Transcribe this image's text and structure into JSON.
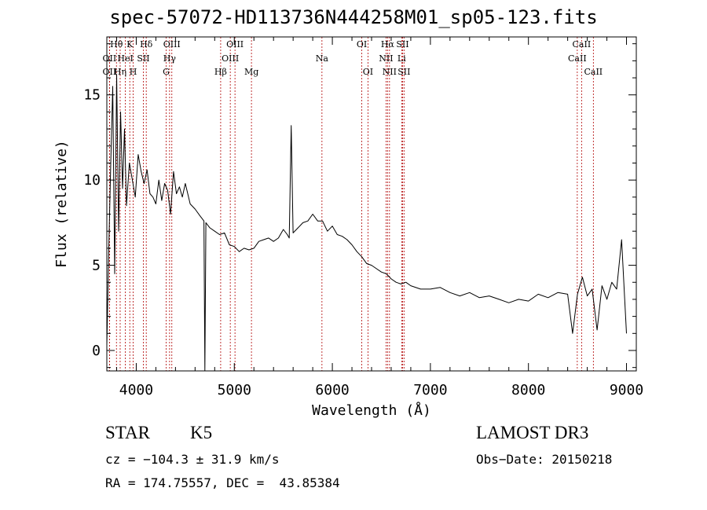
{
  "chart_data": {
    "type": "line",
    "title": "spec-57072-HD113736N444258M01_sp05-123.fits",
    "xlabel": "Wavelength (Å)",
    "ylabel": "Flux (relative)",
    "xlim": [
      3700,
      9100
    ],
    "ylim": [
      -1.2,
      18.4
    ],
    "x_ticks": [
      4000,
      5000,
      6000,
      7000,
      8000,
      9000
    ],
    "y_ticks": [
      0,
      5,
      10,
      15
    ],
    "grid": false,
    "series": [
      {
        "x": [
          3700,
          3720,
          3740,
          3760,
          3780,
          3800,
          3820,
          3840,
          3860,
          3880,
          3900,
          3930,
          3960,
          3990,
          4020,
          4050,
          4080,
          4110,
          4140,
          4170,
          4200,
          4230,
          4260,
          4290,
          4320,
          4350,
          4380,
          4410,
          4440,
          4470,
          4500,
          4550,
          4600,
          4650,
          4690,
          4700,
          4710,
          4750,
          4800,
          4850,
          4900,
          4950,
          5000,
          5050,
          5100,
          5150,
          5200,
          5250,
          5300,
          5350,
          5400,
          5450,
          5500,
          5540,
          5560,
          5580,
          5600,
          5650,
          5700,
          5750,
          5800,
          5850,
          5900,
          5950,
          6000,
          6050,
          6100,
          6150,
          6200,
          6250,
          6300,
          6350,
          6400,
          6450,
          6500,
          6550,
          6600,
          6650,
          6700,
          6750,
          6800,
          6900,
          7000,
          7100,
          7200,
          7300,
          7400,
          7500,
          7600,
          7700,
          7800,
          7900,
          8000,
          8100,
          8200,
          8300,
          8400,
          8450,
          8500,
          8550,
          8600,
          8650,
          8700,
          8750,
          8800,
          8850,
          8900,
          8950,
          8980,
          9000
        ],
        "y": [
          0.3,
          6.0,
          11.0,
          15.5,
          4.5,
          16.2,
          7.0,
          14.0,
          9.5,
          13.0,
          8.5,
          11.0,
          10.0,
          9.0,
          11.5,
          10.5,
          9.8,
          10.6,
          9.2,
          9.0,
          8.6,
          10.0,
          8.8,
          9.8,
          9.4,
          8.0,
          10.5,
          9.2,
          9.6,
          9.0,
          9.8,
          8.6,
          8.3,
          7.9,
          7.6,
          -1.2,
          7.5,
          7.2,
          7.0,
          6.8,
          6.9,
          6.2,
          6.1,
          5.8,
          6.0,
          5.9,
          6.0,
          6.4,
          6.5,
          6.6,
          6.4,
          6.6,
          7.1,
          6.8,
          6.6,
          13.2,
          6.9,
          7.2,
          7.5,
          7.6,
          8.0,
          7.6,
          7.6,
          7.0,
          7.3,
          6.8,
          6.7,
          6.5,
          6.2,
          5.8,
          5.5,
          5.1,
          5.0,
          4.8,
          4.6,
          4.5,
          4.2,
          4.0,
          3.9,
          4.0,
          3.8,
          3.6,
          3.6,
          3.7,
          3.4,
          3.2,
          3.4,
          3.1,
          3.2,
          3.0,
          2.8,
          3.0,
          2.9,
          3.3,
          3.1,
          3.4,
          3.3,
          1.0,
          3.3,
          4.3,
          3.2,
          3.6,
          1.2,
          3.8,
          3.0,
          4.0,
          3.6,
          6.5,
          3.2,
          1.0
        ]
      }
    ],
    "line_markers": [
      {
        "label": "OII",
        "wavelength": 3727,
        "row": 1
      },
      {
        "label": "OII",
        "wavelength": 3727,
        "row": 2
      },
      {
        "label": "Hθ",
        "wavelength": 3798,
        "row": 0
      },
      {
        "label": "Hη",
        "wavelength": 3836,
        "row": 2
      },
      {
        "label": "HeI",
        "wavelength": 3889,
        "row": 1
      },
      {
        "label": "K",
        "wavelength": 3934,
        "row": 0
      },
      {
        "label": "H",
        "wavelength": 3969,
        "row": 2
      },
      {
        "label": "SII",
        "wavelength": 4072,
        "row": 1
      },
      {
        "label": "Hδ",
        "wavelength": 4102,
        "row": 0
      },
      {
        "label": "G",
        "wavelength": 4305,
        "row": 2
      },
      {
        "label": "Hγ",
        "wavelength": 4340,
        "row": 1
      },
      {
        "label": "OIII",
        "wavelength": 4363,
        "row": 0
      },
      {
        "label": "Hβ",
        "wavelength": 4861,
        "row": 2
      },
      {
        "label": "OIII",
        "wavelength": 4959,
        "row": 1
      },
      {
        "label": "OIII",
        "wavelength": 5007,
        "row": 0
      },
      {
        "label": "Mg",
        "wavelength": 5175,
        "row": 2
      },
      {
        "label": "Na",
        "wavelength": 5894,
        "row": 1
      },
      {
        "label": "OI",
        "wavelength": 6300,
        "row": 0
      },
      {
        "label": "OI",
        "wavelength": 6363,
        "row": 2
      },
      {
        "label": "NII",
        "wavelength": 6548,
        "row": 1
      },
      {
        "label": "Hα",
        "wavelength": 6563,
        "row": 0
      },
      {
        "label": "NII",
        "wavelength": 6583,
        "row": 2
      },
      {
        "label": "Li",
        "wavelength": 6707,
        "row": 1
      },
      {
        "label": "SII",
        "wavelength": 6716,
        "row": 0
      },
      {
        "label": "SII",
        "wavelength": 6731,
        "row": 2
      },
      {
        "label": "CaII",
        "wavelength": 8498,
        "row": 1
      },
      {
        "label": "CaII",
        "wavelength": 8542,
        "row": 0
      },
      {
        "label": "CaII",
        "wavelength": 8662,
        "row": 2
      }
    ],
    "marker_color": "#b00000"
  },
  "info": {
    "class_label": "STAR",
    "subclass": "K5",
    "survey": "LAMOST DR3",
    "redshift": "cz = −104.3 ± 31.9 km/s",
    "obs_date": "Obs−Date: 20150218",
    "coords": "RA = 174.75557, DEC =  43.85384"
  }
}
